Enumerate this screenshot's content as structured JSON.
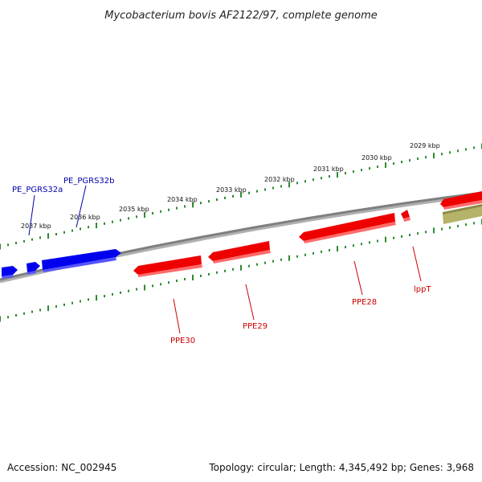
{
  "title": "Mycobacterium bovis AF2122/97, complete genome",
  "footer": {
    "accession": "Accession: NC_002945",
    "summary": "Topology: circular; Length: 4,345,492 bp; Genes: 3,968"
  },
  "colors": {
    "backbone": "#7f7f7f",
    "tick": "#2e8b2e",
    "forward_gene": "#0000ee",
    "reverse_gene": "#ee0000",
    "other_feature": "#b5b36a",
    "forward_label": "#0000aa",
    "reverse_label": "#cc0000"
  },
  "scale_labels": [
    "2037 kbp",
    "2036 kbp",
    "2035 kbp",
    "2034 kbp",
    "2033 kbp",
    "2032 kbp",
    "2031 kbp",
    "2030 kbp",
    "2029 kbp"
  ],
  "forward_genes": [
    {
      "label": "PE_PGRS32a",
      "icon": "forward-gene-arrow"
    },
    {
      "label": "PE_PGRS32b",
      "icon": "forward-gene-arrow"
    }
  ],
  "reverse_genes": [
    {
      "label": "PPE30"
    },
    {
      "label": "PPE29"
    },
    {
      "label": "PPE28"
    },
    {
      "label": "lppT"
    }
  ]
}
